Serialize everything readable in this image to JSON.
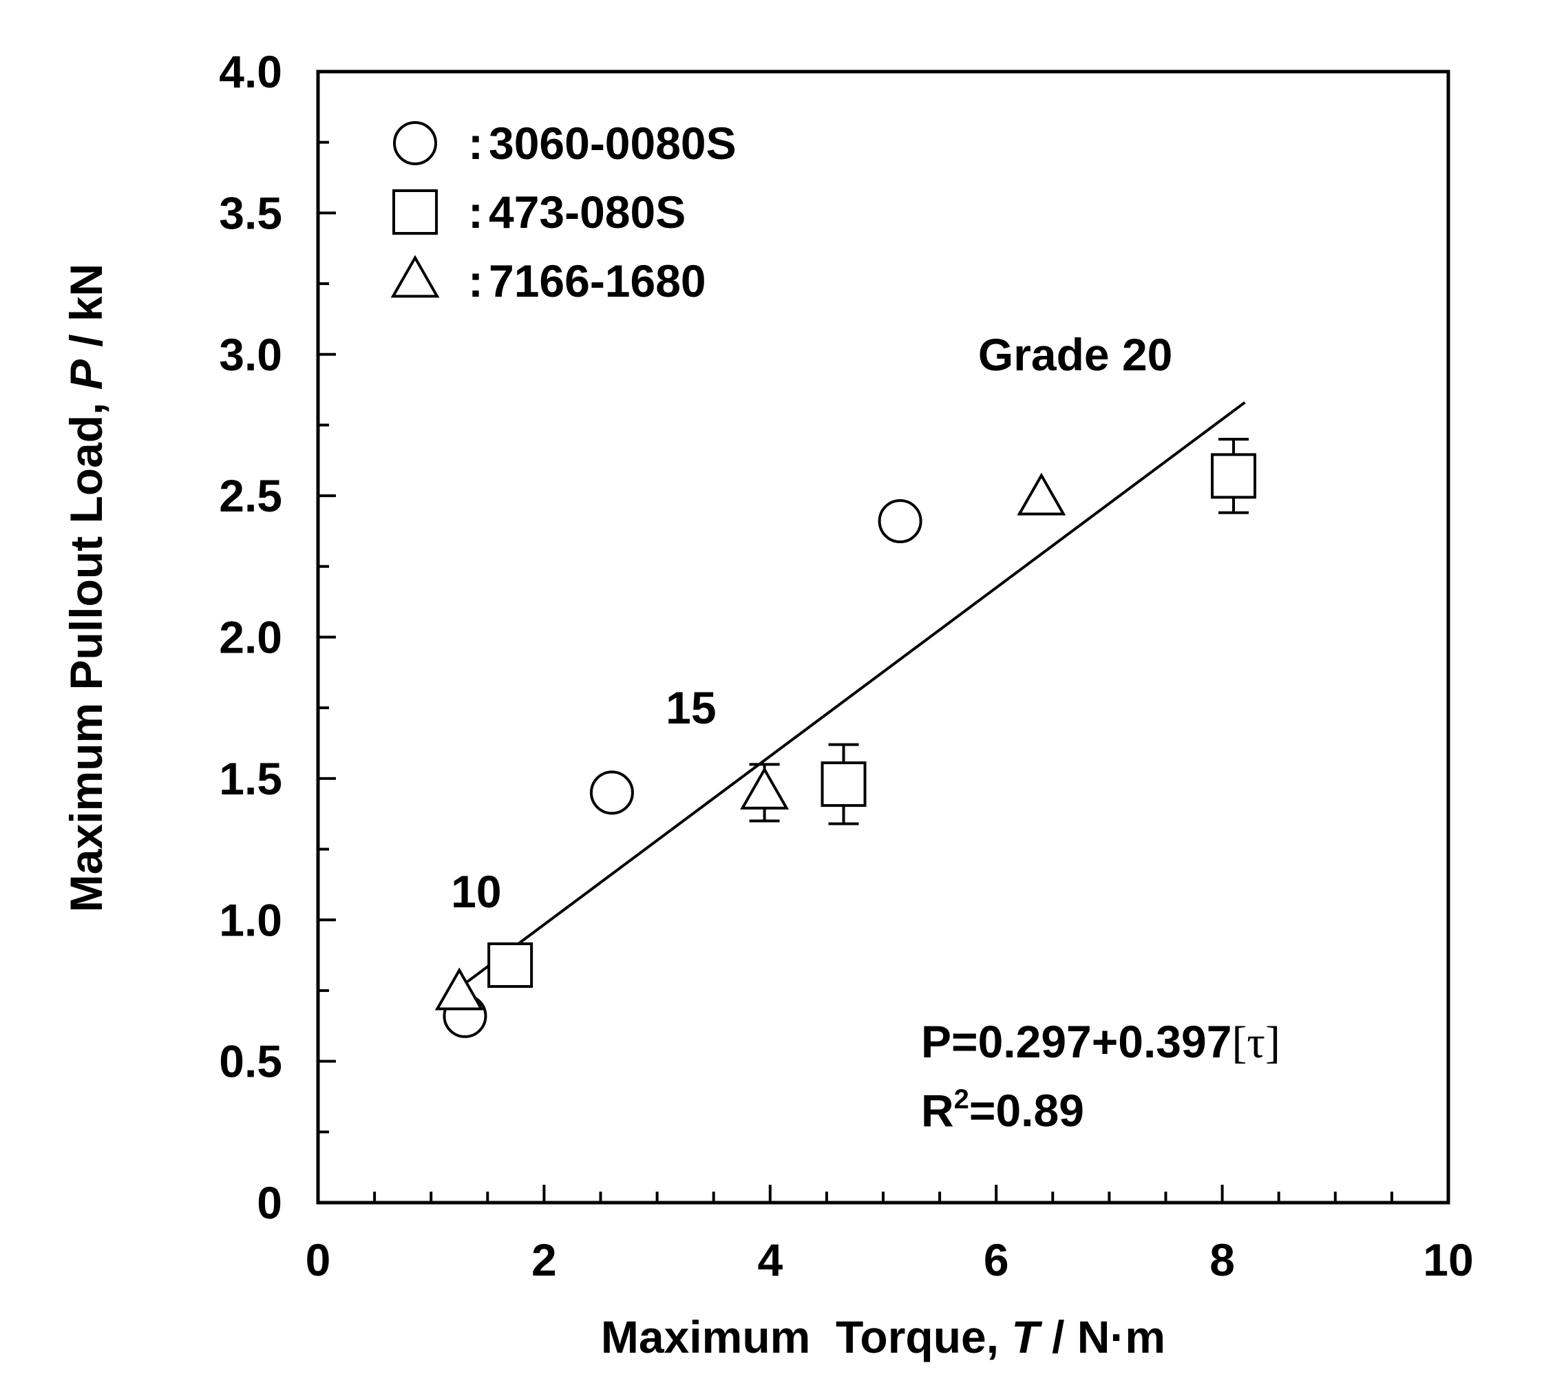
{
  "chart_data": {
    "type": "scatter",
    "xlabel": {
      "prefix": "Maximum  Torque, ",
      "symbol": "T",
      "suffix": " / N·m"
    },
    "ylabel": {
      "prefix": "Maximum Pullout Load, ",
      "symbol": "P",
      "suffix": " / kN"
    },
    "xlim": [
      0,
      10
    ],
    "ylim": [
      0,
      4.0
    ],
    "x_tick_labels": [
      "0",
      "2",
      "4",
      "6",
      "8",
      "10"
    ],
    "x_tick_values": [
      0,
      2,
      4,
      6,
      8,
      10
    ],
    "y_tick_labels": [
      "0",
      "0.5",
      "1.0",
      "1.5",
      "2.0",
      "2.5",
      "3.0",
      "3.5",
      "4.0"
    ],
    "y_tick_values": [
      0,
      0.5,
      1.0,
      1.5,
      2.0,
      2.5,
      3.0,
      3.5,
      4.0
    ],
    "grid": false,
    "legend_position": "top-left",
    "series": [
      {
        "name": "3060-0080S",
        "marker": "circle",
        "points": [
          {
            "x": 1.3,
            "y": 0.66
          },
          {
            "x": 2.6,
            "y": 1.45
          },
          {
            "x": 5.15,
            "y": 2.41
          }
        ]
      },
      {
        "name": "473-080S",
        "marker": "square",
        "points": [
          {
            "x": 1.7,
            "y": 0.84
          },
          {
            "x": 4.65,
            "y": 1.48,
            "err_low": 1.34,
            "err_high": 1.62
          },
          {
            "x": 8.1,
            "y": 2.57,
            "err_low": 2.44,
            "err_high": 2.7
          }
        ]
      },
      {
        "name": "7166-1680",
        "marker": "triangle",
        "points": [
          {
            "x": 1.25,
            "y": 0.74
          },
          {
            "x": 3.95,
            "y": 1.45,
            "err_low": 1.35,
            "err_high": 1.55
          },
          {
            "x": 6.4,
            "y": 2.49
          }
        ]
      }
    ],
    "fit_line": {
      "x": [
        1.25,
        8.2
      ],
      "y": [
        0.76,
        2.83
      ]
    },
    "legend_separator": ":",
    "annotations": [
      {
        "text": "10",
        "x": 1.4,
        "y": 1.1
      },
      {
        "text": "15",
        "x": 3.3,
        "y": 1.75
      },
      {
        "text": "Grade 20",
        "x": 6.7,
        "y": 3.0
      }
    ],
    "equation": {
      "lhs": "P=0.297+0.397",
      "bracket_open": "[",
      "tau": "τ",
      "bracket_close": "]",
      "r2_base": "R",
      "r2_sup": "2",
      "r2_value": "=0.89"
    }
  }
}
